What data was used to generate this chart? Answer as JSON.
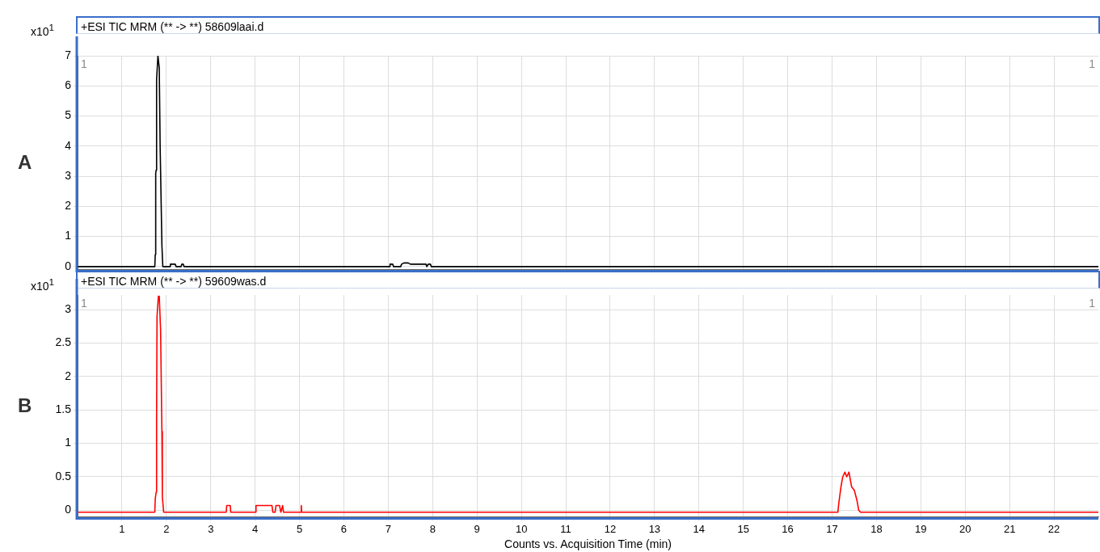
{
  "chart_data": [
    {
      "type": "line",
      "title": "+ESI TIC MRM (** -> **) 58609laai.d",
      "ylabel": "x10$^{1}$",
      "annotations": [
        "A",
        "1",
        "1"
      ],
      "xlim": [
        0,
        23
      ],
      "xticks": [
        1,
        2,
        3,
        4,
        5,
        6,
        7,
        8,
        9,
        10,
        11,
        12,
        13,
        14,
        15,
        16,
        17,
        18,
        19,
        20,
        21,
        22
      ],
      "ylim": [
        -0.1,
        7
      ],
      "yticks": [
        0,
        1,
        2,
        3,
        4,
        5,
        6,
        7
      ],
      "grid": true,
      "tick_labels": "y",
      "marker": "none",
      "series": [
        {
          "color": "#000000",
          "x": [
            0,
            1.74,
            1.75,
            1.76,
            1.77,
            1.78,
            1.81,
            1.84,
            1.86,
            1.9,
            1.92,
            2.08,
            2.09,
            2.2,
            2.22,
            2.33,
            2.35,
            2.38,
            2.4,
            7.03,
            7.04,
            7.1,
            7.12,
            7.28,
            7.3,
            7.35,
            7.45,
            7.5,
            7.85,
            7.87,
            7.9,
            7.95,
            7.97,
            23
          ],
          "values": [
            0,
            0,
            0.4,
            3.1,
            3.2,
            6.2,
            7,
            6.6,
            4,
            0.7,
            0,
            0,
            0.08,
            0.08,
            0,
            0,
            0.08,
            0.08,
            0,
            0,
            0.08,
            0.08,
            0,
            0,
            0.08,
            0.12,
            0.12,
            0.08,
            0.08,
            0,
            0.08,
            0.08,
            0,
            0
          ]
        }
      ]
    },
    {
      "type": "line",
      "title": "+ESI TIC MRM (** -> **) 59609was.d",
      "ylabel": "x10$^{1}$",
      "xlabel": "Counts vs. Acquisition Time (min)",
      "annotations": [
        "B",
        "1",
        "1"
      ],
      "xlim": [
        0,
        23
      ],
      "xticks": [
        1,
        2,
        3,
        4,
        5,
        6,
        7,
        8,
        9,
        10,
        11,
        12,
        13,
        14,
        15,
        16,
        17,
        18,
        19,
        20,
        21,
        22
      ],
      "ylim": [
        -0.1,
        3.22
      ],
      "yticks": [
        0,
        0.5,
        1,
        1.5,
        2,
        2.5,
        3
      ],
      "grid": true,
      "marker": "none",
      "series": [
        {
          "color": "#ff0000",
          "x": [
            0,
            1.74,
            1.75,
            1.77,
            1.78,
            1.79,
            1.82,
            1.84,
            1.87,
            1.9,
            1.91,
            1.94,
            3.35,
            3.36,
            3.44,
            3.45,
            4.01,
            4.02,
            4.31,
            4.33,
            4.38,
            4.4,
            4.45,
            4.47,
            4.55,
            4.58,
            4.62,
            4.64,
            5.03,
            5.04,
            5.05,
            17.13,
            17.15,
            17.2,
            17.24,
            17.29,
            17.33,
            17.38,
            17.44,
            17.5,
            17.56,
            17.6,
            17.64,
            23
          ],
          "values": [
            -0.03,
            -0.03,
            0.17,
            0.27,
            1.37,
            2.9,
            3.2,
            3.2,
            2.7,
            1.18,
            0.2,
            -0.03,
            -0.03,
            0.07,
            0.07,
            -0.03,
            -0.03,
            0.07,
            0.07,
            0.07,
            0.07,
            -0.03,
            -0.03,
            0.07,
            0.07,
            -0.03,
            0.07,
            -0.03,
            -0.03,
            0.07,
            -0.03,
            -0.03,
            0.1,
            0.35,
            0.5,
            0.57,
            0.5,
            0.57,
            0.35,
            0.3,
            0.15,
            0,
            -0.03,
            -0.03
          ]
        }
      ]
    }
  ]
}
